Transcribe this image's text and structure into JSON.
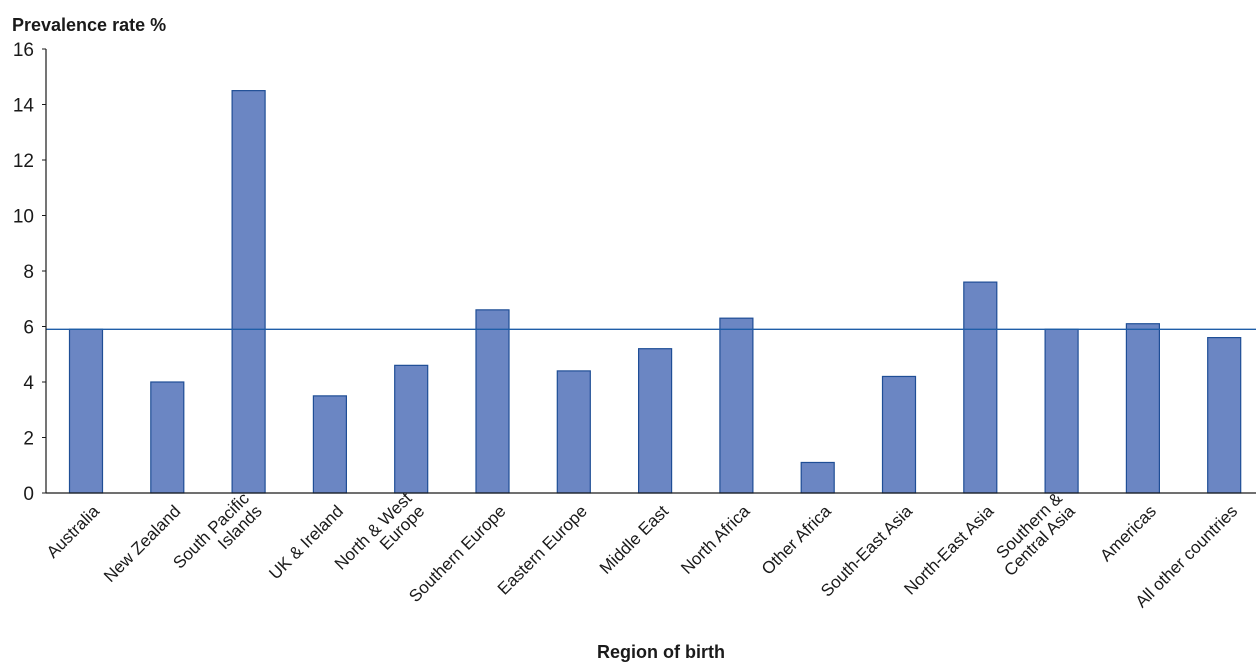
{
  "chart_data": {
    "type": "bar",
    "ylabel": "Prevalence rate %",
    "xlabel": "Region of birth",
    "ylim": [
      0,
      16
    ],
    "yticks": [
      0,
      2,
      4,
      6,
      8,
      10,
      12,
      14,
      16
    ],
    "grid": false,
    "categories": [
      [
        "Australia"
      ],
      [
        "New Zealand"
      ],
      [
        "South Pacific",
        "Islands"
      ],
      [
        "UK & Ireland"
      ],
      [
        "North & West",
        "Europe"
      ],
      [
        "Southern Europe"
      ],
      [
        "Eastern Europe"
      ],
      [
        "Middle East"
      ],
      [
        "North Africa"
      ],
      [
        "Other Africa"
      ],
      [
        "South-East Asia"
      ],
      [
        "North-East Asia"
      ],
      [
        "Southern  &",
        "Central Asia"
      ],
      [
        "Americas"
      ],
      [
        "All other countries"
      ]
    ],
    "values": [
      5.9,
      4.0,
      14.5,
      3.5,
      4.6,
      6.6,
      4.4,
      5.2,
      6.3,
      1.1,
      4.2,
      7.6,
      5.9,
      6.1,
      5.6
    ],
    "reference_line": {
      "value": 5.9
    },
    "colors": {
      "bar_fill": "#6b86c3",
      "bar_stroke": "#1f4e96",
      "reference_line": "#1f5ea8",
      "axis": "#1a1a1a"
    }
  }
}
